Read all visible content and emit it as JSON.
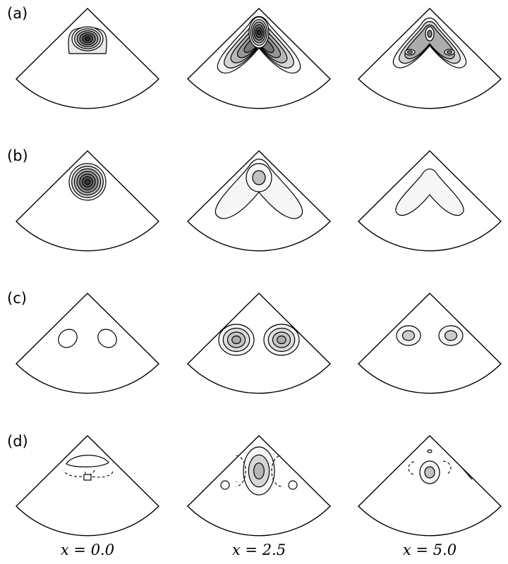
{
  "figure": {
    "rows": [
      {
        "label": "(a)"
      },
      {
        "label": "(b)"
      },
      {
        "label": "(c)"
      },
      {
        "label": "(d)"
      }
    ],
    "columns": [
      {
        "label": "x = 0.0"
      },
      {
        "label": "x = 2.5"
      },
      {
        "label": "x = 5.0"
      }
    ],
    "colors": {
      "line": "#000000",
      "background": "#ffffff",
      "fill_light": "#f4f4f4",
      "fill_dark": "#2a2a2a"
    }
  }
}
